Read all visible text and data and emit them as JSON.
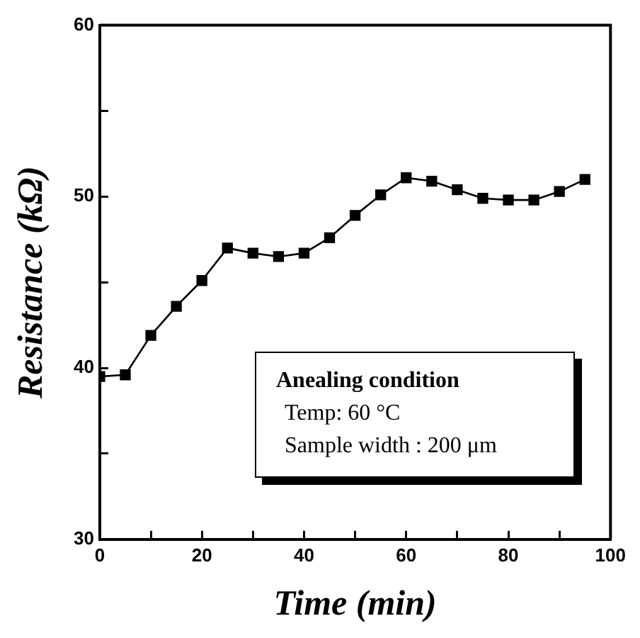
{
  "chart_data": {
    "type": "line",
    "xlabel": "Time (min)",
    "ylabel": "Resistance (kΩ)",
    "x": [
      0,
      5,
      10,
      15,
      20,
      25,
      30,
      35,
      40,
      45,
      50,
      55,
      60,
      65,
      70,
      75,
      80,
      85,
      90,
      95
    ],
    "series": [
      {
        "color": "#000000",
        "values": [
          39.5,
          39.6,
          41.9,
          43.6,
          45.1,
          47.0,
          46.7,
          46.5,
          46.7,
          47.6,
          48.9,
          50.1,
          51.1,
          50.9,
          50.4,
          49.9,
          49.8,
          49.8,
          50.3,
          51.0
        ]
      }
    ],
    "xlim": [
      0,
      100
    ],
    "ylim": [
      30,
      60
    ],
    "xticks": [
      0,
      {
        "value": 10,
        "label": null
      },
      20,
      {
        "value": 30,
        "label": null
      },
      40,
      {
        "value": 50,
        "label": null
      },
      60,
      {
        "value": 70,
        "label": null
      },
      80,
      {
        "value": 90,
        "label": null
      },
      100
    ],
    "yticks": [
      30,
      {
        "value": 35,
        "label": null
      },
      40,
      {
        "value": 45,
        "label": null
      },
      50,
      {
        "value": 55,
        "label": null
      },
      60
    ],
    "annotations": [
      "Anealing condition",
      "Temp: 60 °C",
      "Sample width : 200 μm"
    ],
    "marker": "square",
    "line_style": "solid",
    "grid": false,
    "legend": false
  }
}
